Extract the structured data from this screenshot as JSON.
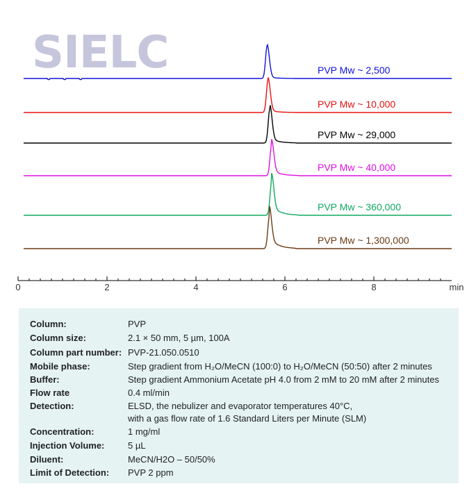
{
  "logo": {
    "text": "SIELC",
    "color": "#c5c5dc"
  },
  "chart_data": {
    "type": "line",
    "title": "",
    "xlabel": "",
    "x_unit": "min",
    "ylabel": "",
    "xlim": [
      0,
      9.75
    ],
    "xticks": [
      0,
      2,
      4,
      6,
      8
    ],
    "grid": false,
    "series": [
      {
        "name": "PVP  Mw ~ 2,500",
        "color": "#1010dd",
        "peak_time": 5.6,
        "peak_height": 1.0,
        "tail": 0.05
      },
      {
        "name": "PVP  Mw ~ 10,000",
        "color": "#e81010",
        "peak_time": 5.62,
        "peak_height": 1.0,
        "tail": 0.08
      },
      {
        "name": "PVP  Mw ~ 29,000",
        "color": "#000000",
        "peak_time": 5.66,
        "peak_height": 1.0,
        "tail": 0.15
      },
      {
        "name": "PVP  Mw ~ 40,000",
        "color": "#e010e0",
        "peak_time": 5.7,
        "peak_height": 1.0,
        "tail": 0.2
      },
      {
        "name": "PVP  Mw ~ 360,000",
        "color": "#10a860",
        "peak_time": 5.7,
        "peak_height": 1.0,
        "tail": 0.3
      },
      {
        "name": "PVP  Mw ~ 1,300,000",
        "color": "#6b3a12",
        "peak_time": 5.65,
        "peak_height": 1.0,
        "tail": 0.35
      }
    ]
  },
  "conditions": [
    {
      "label": "Column:",
      "value": "PVP"
    },
    {
      "label": "Column size:",
      "value": "2.1 × 50 mm, 5 µm, 100A"
    },
    {
      "label": "Column part number:",
      "value": "PVP-21.050.0510"
    },
    {
      "label": "Mobile phase:",
      "value": "Step gradient from H₂O/MeCN (100:0) to H₂O/MeCN (50:50) after 2 minutes"
    },
    {
      "label": "Buffer:",
      "value": "Step gradient Ammonium Acetate  pH 4.0  from 2 mM to 20 mM after 2 minutes"
    },
    {
      "label": "Flow rate",
      "value": "0.4 ml/min"
    },
    {
      "label": "Detection:",
      "value": "ELSD, the nebulizer and evaporator temperatures 40°C,",
      "value2": " with a gas flow rate of 1.6 Standard Liters per Minute (SLM)"
    },
    {
      "label": "Concentration:",
      "value": "1 mg/ml"
    },
    {
      "label": "Injection Volume:",
      "value": "5 µL"
    },
    {
      "label": "Diluent:",
      "value": "MeCN/H2O – 50/50%"
    },
    {
      "label": "Limit of Detection:",
      "value": "PVP 2 ppm"
    }
  ]
}
